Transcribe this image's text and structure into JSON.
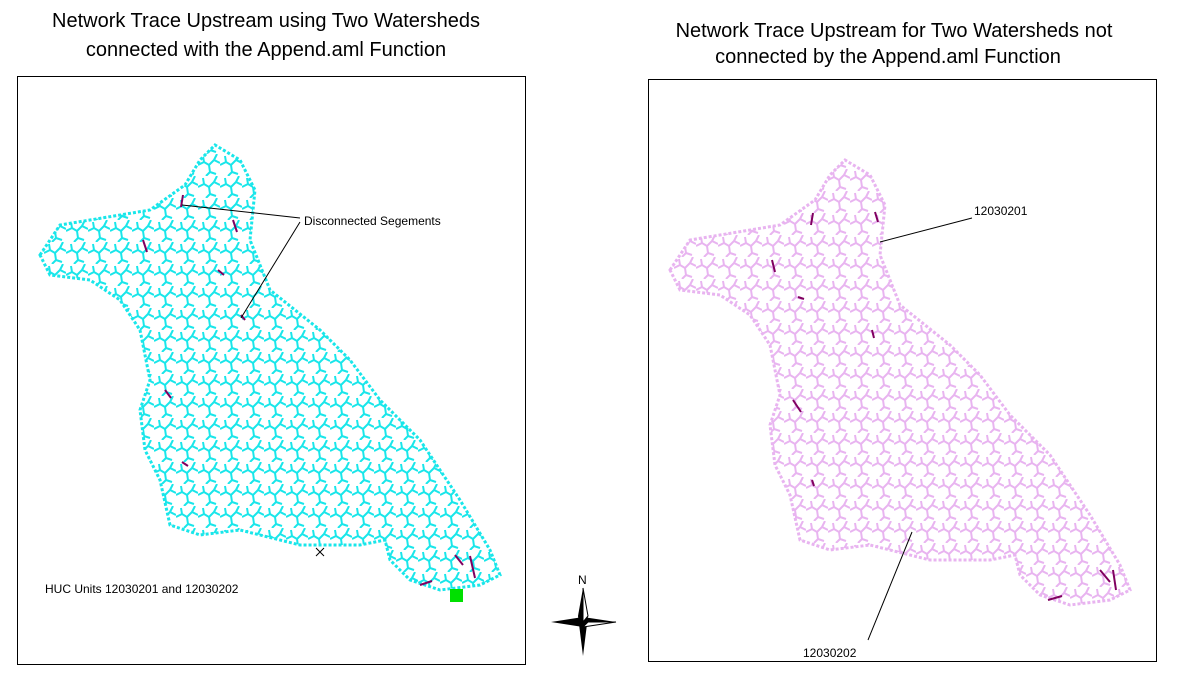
{
  "left_panel": {
    "title": [
      "Network Trace Upstream using Two Watersheds",
      "connected with the Append.aml Function"
    ],
    "label": "Disconnected Segements",
    "caption": "HUC Units 12030201 and 12030202"
  },
  "right_panel": {
    "title": [
      "Network Trace Upstream for Two Watersheds not",
      "connected by the Append.aml Function"
    ],
    "labels": [
      "12030201",
      "12030202"
    ]
  },
  "north_arrow": {
    "label": "N"
  }
}
